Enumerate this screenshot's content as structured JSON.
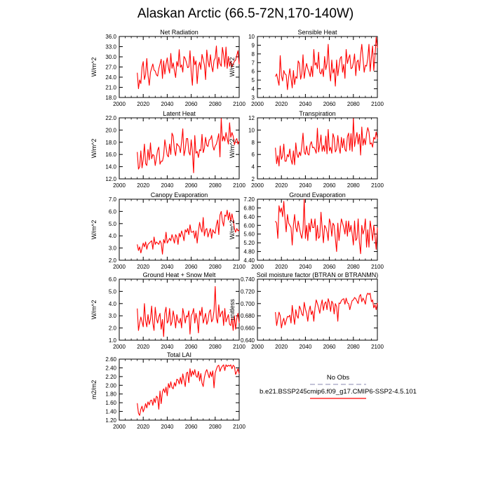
{
  "figure": {
    "title": "Alaskan Arctic (66.5-72N,170-140W)"
  },
  "colors": {
    "series": "#ff0000",
    "obs": "#a0a0c0"
  },
  "legend": {
    "entries": [
      {
        "label": "No Obs",
        "style": "dashed",
        "color": "#a0a0c0"
      },
      {
        "label": "b.e21.BSSP245cmip6.f09_g17.CMIP6-SSP2-4.5.101",
        "style": "solid",
        "color": "#ff0000"
      }
    ]
  },
  "chart_data": [
    {
      "type": "line",
      "title": "Net Radiation",
      "ylabel": "W/m^2",
      "xlim": [
        2000,
        2100
      ],
      "ylim": [
        18,
        36
      ],
      "xticks": [
        "2000",
        "2020",
        "2040",
        "2060",
        "2080",
        "2100"
      ],
      "yticks": [
        "18.0",
        "21.0",
        "24.0",
        "27.0",
        "30.0",
        "33.0",
        "36.0"
      ],
      "x_start": 2015,
      "series": [
        {
          "values": [
            25.3,
            20.6,
            23.2,
            22.1,
            27.0,
            28.6,
            23.3,
            24.8,
            29.5,
            24.6,
            21.6,
            25.4,
            26.7,
            27.9,
            26.1,
            25.8,
            24.7,
            24.3,
            26.5,
            27.9,
            29.3,
            23.6,
            28.8,
            24.9,
            27.8,
            29.7,
            26.9,
            25.2,
            31.0,
            26.6,
            28.2,
            25.8,
            23.9,
            28.6,
            27.2,
            32.1,
            26.9,
            27.6,
            25.5,
            30.1,
            29.5,
            28.3,
            26.8,
            27.0,
            31.8,
            25.4,
            21.6,
            30.1,
            27.6,
            28.8,
            22.1,
            27.0,
            28.4,
            26.3,
            30.7,
            29.2,
            27.6,
            23.3,
            32.0,
            28.8,
            27.0,
            30.6,
            27.2,
            25.6,
            28.9,
            29.6,
            33.2,
            26.5,
            29.9,
            28.0,
            27.2,
            32.8,
            30.5,
            27.1,
            32.9,
            26.6,
            30.1,
            27.2,
            28.7,
            27.0,
            27.9,
            28.7,
            29.0,
            30.5,
            31.8,
            27.8
          ]
        }
      ]
    },
    {
      "type": "line",
      "title": "Sensible Heat",
      "ylabel": "W/m^2",
      "xlim": [
        2000,
        2100
      ],
      "ylim": [
        3,
        10
      ],
      "xticks": [
        "2000",
        "2020",
        "2040",
        "2060",
        "2080",
        "2100"
      ],
      "yticks": [
        "3",
        "4",
        "5",
        "6",
        "7",
        "8",
        "9",
        "10"
      ],
      "x_start": 2015,
      "series": [
        {
          "values": [
            5.4,
            5.7,
            5.0,
            4.4,
            7.8,
            5.5,
            4.9,
            6.1,
            5.7,
            5.6,
            3.9,
            5.3,
            6.3,
            5.2,
            4.1,
            6.1,
            4.5,
            5.4,
            5.2,
            7.2,
            6.9,
            5.1,
            5.7,
            7.9,
            5.2,
            6.2,
            6.9,
            6.3,
            5.9,
            5.4,
            6.6,
            5.4,
            8.5,
            6.7,
            7.0,
            6.3,
            8.2,
            5.9,
            5.7,
            6.3,
            5.4,
            7.7,
            6.2,
            6.9,
            9.1,
            6.1,
            4.9,
            7.3,
            5.8,
            6.3,
            4.3,
            7.3,
            5.5,
            6.6,
            7.5,
            7.7,
            5.9,
            6.8,
            5.2,
            8.5,
            6.9,
            7.5,
            7.9,
            6.3,
            6.4,
            7.0,
            8.0,
            5.5,
            7.1,
            7.3,
            6.1,
            7.9,
            9.1,
            7.5,
            5.9,
            6.7,
            6.6,
            7.5,
            9.1,
            6.0,
            7.6,
            8.9,
            6.1,
            7.7,
            9.9,
            8.7
          ]
        }
      ]
    },
    {
      "type": "line",
      "title": "Latent Heat",
      "ylabel": "W/m^2",
      "xlim": [
        2000,
        2100
      ],
      "ylim": [
        12,
        22
      ],
      "xticks": [
        "2000",
        "2020",
        "2040",
        "2060",
        "2080",
        "2100"
      ],
      "yticks": [
        "12.0",
        "14.0",
        "16.0",
        "18.0",
        "20.0",
        "22.0"
      ],
      "x_start": 2015,
      "series": [
        {
          "values": [
            16.4,
            13.6,
            14.0,
            16.6,
            13.8,
            15.2,
            17.7,
            14.5,
            14.2,
            16.8,
            15.1,
            17.9,
            15.3,
            16.0,
            15.8,
            14.2,
            15.4,
            16.7,
            17.2,
            14.4,
            14.9,
            14.9,
            15.8,
            18.4,
            17.2,
            15.9,
            15.6,
            17.7,
            16.0,
            19.5,
            19.0,
            16.7,
            15.8,
            17.8,
            17.5,
            17.3,
            16.3,
            18.1,
            20.2,
            15.8,
            16.8,
            18.6,
            18.6,
            16.4,
            15.9,
            18.4,
            16.5,
            13.0,
            19.1,
            16.2,
            16.5,
            15.5,
            16.8,
            16.6,
            19.3,
            16.3,
            17.0,
            18.8,
            17.5,
            17.3,
            18.4,
            18.5,
            19.1,
            17.4,
            16.7,
            17.4,
            17.7,
            18.5,
            19.4,
            15.6,
            21.9,
            18.2,
            19.0,
            18.2,
            19.6,
            18.6,
            17.7,
            21.2,
            18.8,
            19.6,
            19.0,
            17.6,
            18.3,
            18.6,
            17.7,
            18.2
          ]
        }
      ]
    },
    {
      "type": "line",
      "title": "Transpiration",
      "ylabel": "W/m^2",
      "xlim": [
        2000,
        2100
      ],
      "ylim": [
        2,
        12
      ],
      "xticks": [
        "2000",
        "2020",
        "2040",
        "2060",
        "2080",
        "2100"
      ],
      "yticks": [
        "2",
        "4",
        "6",
        "8",
        "10",
        "12"
      ],
      "x_start": 2015,
      "series": [
        {
          "values": [
            7.1,
            4.5,
            5.8,
            4.1,
            7.4,
            5.2,
            5.8,
            7.7,
            4.9,
            4.9,
            6.0,
            5.6,
            6.9,
            5.2,
            4.4,
            6.6,
            4.3,
            7.9,
            6.1,
            5.5,
            6.4,
            5.8,
            7.4,
            9.5,
            6.4,
            6.0,
            7.4,
            6.1,
            5.9,
            7.6,
            8.1,
            7.1,
            7.2,
            6.8,
            6.2,
            10.3,
            6.4,
            7.6,
            9.2,
            6.5,
            7.5,
            6.5,
            9.0,
            6.1,
            10.1,
            6.6,
            7.2,
            6.2,
            9.4,
            8.7,
            6.4,
            6.9,
            9.1,
            7.2,
            6.2,
            8.8,
            7.1,
            8.6,
            6.8,
            6.5,
            8.9,
            9.5,
            6.7,
            9.4,
            6.5,
            11.9,
            7.3,
            8.6,
            9.6,
            7.7,
            9.3,
            5.9,
            10.5,
            7.5,
            8.6,
            7.6,
            9.4,
            10.4,
            9.7,
            7.7,
            7.9,
            7.2,
            8.8,
            8.5,
            9.7,
            8.6
          ]
        }
      ]
    },
    {
      "type": "line",
      "title": "Canopy Evaporation",
      "ylabel": "W/m^2",
      "xlim": [
        2000,
        2100
      ],
      "ylim": [
        2,
        7
      ],
      "xticks": [
        "2000",
        "2020",
        "2040",
        "2060",
        "2080",
        "2100"
      ],
      "yticks": [
        "2.0",
        "3.0",
        "4.0",
        "5.0",
        "6.0",
        "7.0"
      ],
      "x_start": 2015,
      "series": [
        {
          "values": [
            3.3,
            2.8,
            3.1,
            2.6,
            3.0,
            3.4,
            3.1,
            3.5,
            2.9,
            3.3,
            3.4,
            3.5,
            3.6,
            2.9,
            3.9,
            3.3,
            3.5,
            3.4,
            3.3,
            3.6,
            3.4,
            2.5,
            3.7,
            3.4,
            4.3,
            3.4,
            3.6,
            3.8,
            3.6,
            4.1,
            3.8,
            3.4,
            4.1,
            3.9,
            3.3,
            4.2,
            3.9,
            4.4,
            4.1,
            3.6,
            4.5,
            4.3,
            4.6,
            4.1,
            4.9,
            4.3,
            4.3,
            4.4,
            3.8,
            4.4,
            3.4,
            4.4,
            5.1,
            4.6,
            4.3,
            5.5,
            4.0,
            4.5,
            4.6,
            3.9,
            4.3,
            4.6,
            3.8,
            4.5,
            4.3,
            4.2,
            4.9,
            5.3,
            4.1,
            5.7,
            6.0,
            5.2,
            4.8,
            5.7,
            5.6,
            6.1,
            5.3,
            5.9,
            5.2,
            5.8,
            5.3,
            4.6,
            4.3,
            4.6,
            4.4,
            4.5
          ]
        }
      ]
    },
    {
      "type": "line",
      "title": "Ground Evaporation",
      "ylabel": "W/m^2",
      "xlim": [
        2000,
        2100
      ],
      "ylim": [
        4.4,
        7.2
      ],
      "xticks": [
        "2000",
        "2020",
        "2040",
        "2060",
        "2080",
        "2100"
      ],
      "yticks": [
        "4.40",
        "4.80",
        "5.20",
        "5.60",
        "6.00",
        "6.40",
        "6.80",
        "7.20"
      ],
      "x_start": 2015,
      "series": [
        {
          "values": [
            6.2,
            6.1,
            5.4,
            6.9,
            6.6,
            6.8,
            6.4,
            7.1,
            6.3,
            5.7,
            6.5,
            6.1,
            6.0,
            5.9,
            5.1,
            6.0,
            6.5,
            5.9,
            5.7,
            6.2,
            5.9,
            5.6,
            5.4,
            5.8,
            7.2,
            5.4,
            6.0,
            5.3,
            6.1,
            5.7,
            6.3,
            5.9,
            5.9,
            6.3,
            5.3,
            6.0,
            5.4,
            5.5,
            6.6,
            5.9,
            5.2,
            6.0,
            5.9,
            5.7,
            5.3,
            6.3,
            6.1,
            5.5,
            6.1,
            6.0,
            5.4,
            4.8,
            6.1,
            5.3,
            5.8,
            6.3,
            6.1,
            5.9,
            5.6,
            6.2,
            5.5,
            6.2,
            5.7,
            6.0,
            5.6,
            5.1,
            6.2,
            5.3,
            5.4,
            6.3,
            5.2,
            4.7,
            6.0,
            5.6,
            5.8,
            6.3,
            5.0,
            5.8,
            5.0,
            6.2,
            5.8,
            5.3,
            6.0,
            5.5,
            4.9,
            5.9
          ]
        }
      ]
    },
    {
      "type": "line",
      "title": "Ground Heat + Snow Melt",
      "ylabel": "W/m^2",
      "xlim": [
        2000,
        2100
      ],
      "ylim": [
        1,
        6
      ],
      "xticks": [
        "2000",
        "2020",
        "2040",
        "2060",
        "2080",
        "2100"
      ],
      "yticks": [
        "1.0",
        "2.0",
        "3.0",
        "4.0",
        "5.0",
        "6.0"
      ],
      "x_start": 2015,
      "series": [
        {
          "values": [
            3.6,
            1.8,
            2.4,
            2.9,
            2.5,
            2.1,
            4.0,
            2.6,
            2.1,
            3.1,
            2.3,
            2.7,
            3.8,
            2.4,
            1.8,
            3.7,
            2.8,
            2.4,
            2.9,
            3.2,
            1.9,
            2.7,
            1.3,
            3.2,
            3.7,
            2.4,
            2.6,
            3.6,
            2.2,
            2.5,
            3.4,
            2.8,
            2.0,
            3.1,
            2.6,
            2.4,
            2.8,
            2.0,
            3.6,
            3.1,
            2.4,
            3.0,
            2.9,
            3.4,
            1.5,
            3.0,
            3.2,
            3.6,
            2.4,
            3.2,
            2.7,
            1.6,
            3.4,
            3.0,
            3.7,
            2.4,
            2.8,
            3.2,
            2.3,
            2.6,
            3.3,
            3.5,
            2.5,
            2.7,
            3.4,
            5.4,
            2.8,
            2.4,
            3.9,
            2.9,
            3.2,
            3.4,
            2.2,
            3.6,
            2.5,
            2.8,
            3.1,
            2.3,
            2.2,
            2.8,
            1.8,
            3.0,
            1.9,
            2.8,
            3.2,
            2.4
          ]
        }
      ]
    },
    {
      "type": "line",
      "title": "Soil moisture factor (BTRAN or BTRANMN)",
      "ylabel": "unitless",
      "xlim": [
        2000,
        2100
      ],
      "ylim": [
        0.64,
        0.74
      ],
      "xticks": [
        "2000",
        "2020",
        "2040",
        "2060",
        "2080",
        "2100"
      ],
      "yticks": [
        "0.640",
        "0.660",
        "0.680",
        "0.700",
        "0.720",
        "0.740"
      ],
      "x_start": 2015,
      "series": [
        {
          "values": [
            0.686,
            0.664,
            0.675,
            0.686,
            0.68,
            0.66,
            0.67,
            0.676,
            0.665,
            0.672,
            0.679,
            0.678,
            0.681,
            0.668,
            0.697,
            0.68,
            0.666,
            0.69,
            0.68,
            0.676,
            0.696,
            0.691,
            0.683,
            0.68,
            0.702,
            0.691,
            0.684,
            0.671,
            0.688,
            0.696,
            0.682,
            0.688,
            0.671,
            0.693,
            0.706,
            0.7,
            0.693,
            0.684,
            0.697,
            0.706,
            0.689,
            0.7,
            0.703,
            0.69,
            0.708,
            0.701,
            0.687,
            0.704,
            0.7,
            0.683,
            0.7,
            0.695,
            0.671,
            0.701,
            0.7,
            0.705,
            0.707,
            0.708,
            0.699,
            0.709,
            0.701,
            0.7,
            0.69,
            0.698,
            0.705,
            0.706,
            0.71,
            0.708,
            0.704,
            0.7,
            0.712,
            0.715,
            0.703,
            0.709,
            0.705,
            0.699,
            0.713,
            0.717,
            0.715,
            0.717,
            0.703,
            0.706,
            0.693,
            0.698,
            0.69,
            0.701
          ]
        }
      ]
    },
    {
      "type": "line",
      "title": "Total LAI",
      "ylabel": "m2/m2",
      "xlim": [
        2000,
        2100
      ],
      "ylim": [
        1.2,
        2.6
      ],
      "xticks": [
        "2000",
        "2020",
        "2040",
        "2060",
        "2080",
        "2100"
      ],
      "yticks": [
        "1.20",
        "1.40",
        "1.60",
        "1.80",
        "2.00",
        "2.20",
        "2.40",
        "2.60"
      ],
      "x_start": 2015,
      "series": [
        {
          "values": [
            1.59,
            1.36,
            1.31,
            1.45,
            1.52,
            1.39,
            1.47,
            1.58,
            1.48,
            1.62,
            1.55,
            1.65,
            1.66,
            1.54,
            1.7,
            1.6,
            1.75,
            1.72,
            1.45,
            1.87,
            1.58,
            1.85,
            1.92,
            1.83,
            1.96,
            1.76,
            2.04,
            1.94,
            2.08,
            1.95,
            1.92,
            2.06,
            1.98,
            2.14,
            2.12,
            2.03,
            2.18,
            2.03,
            2.26,
            2.12,
            1.97,
            2.28,
            2.3,
            2.06,
            2.38,
            2.2,
            2.33,
            2.24,
            2.36,
            2.22,
            2.18,
            2.32,
            2.1,
            2.27,
            2.05,
            1.97,
            2.18,
            2.3,
            2.36,
            2.27,
            2.17,
            2.31,
            2.2,
            2.33,
            1.94,
            2.28,
            2.37,
            2.44,
            2.46,
            2.32,
            2.4,
            2.44,
            2.47,
            2.34,
            2.47,
            2.43,
            2.46,
            2.44,
            2.47,
            2.38,
            2.46,
            2.43,
            2.25,
            2.31,
            2.38,
            2.26
          ]
        }
      ]
    }
  ]
}
